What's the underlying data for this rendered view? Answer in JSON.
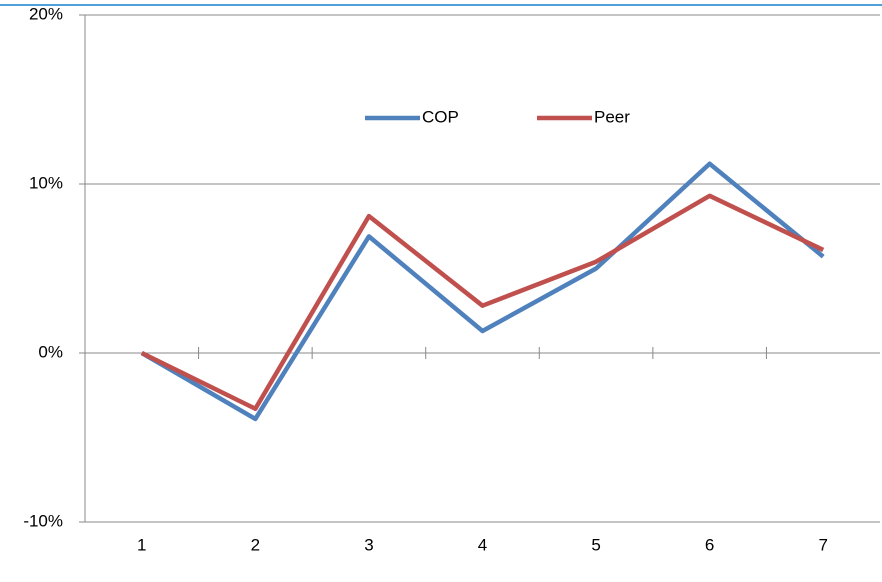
{
  "chart_data": {
    "type": "line",
    "categories": [
      "1",
      "2",
      "3",
      "4",
      "5",
      "6",
      "7"
    ],
    "series": [
      {
        "name": "COP",
        "color": "#4f81bd",
        "values": [
          0,
          -3.9,
          6.9,
          1.3,
          5.0,
          11.2,
          5.7
        ]
      },
      {
        "name": "Peer",
        "color": "#c0504d",
        "values": [
          0,
          -3.3,
          8.1,
          2.8,
          5.4,
          9.3,
          6.1
        ]
      }
    ],
    "ylim": [
      -10,
      20
    ],
    "yticks": [
      {
        "value": -10,
        "label": "-10%"
      },
      {
        "value": 0,
        "label": "0%"
      },
      {
        "value": 10,
        "label": "10%"
      },
      {
        "value": 20,
        "label": "20%"
      }
    ],
    "grid": true,
    "legend": "top"
  }
}
